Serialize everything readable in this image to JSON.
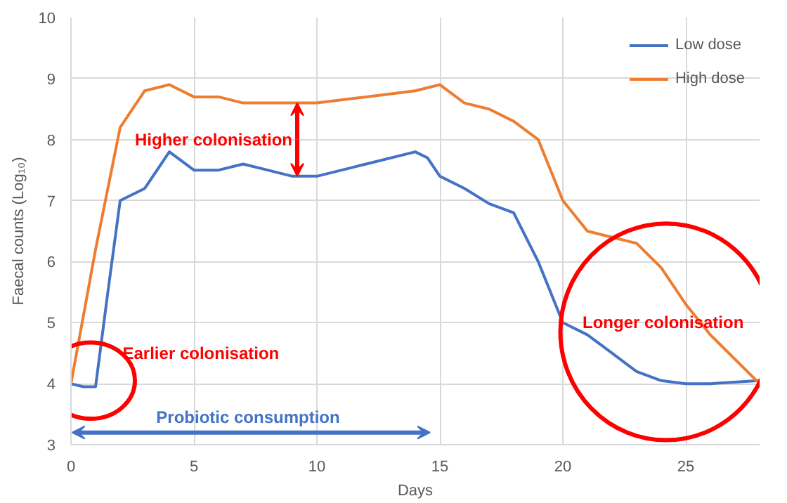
{
  "chart_data": {
    "type": "line",
    "xlabel": "Days",
    "ylabel": "Faecal counts (Log₁₀)",
    "xlim": [
      0,
      28
    ],
    "ylim": [
      3,
      10
    ],
    "xticks": [
      0,
      5,
      10,
      15,
      20,
      25
    ],
    "yticks": [
      3,
      4,
      5,
      6,
      7,
      8,
      9,
      10
    ],
    "grid": true,
    "legend": "top right",
    "line_style": "solid",
    "marker": "none",
    "series": [
      {
        "name": "Low dose",
        "color": "#4472c4",
        "x": [
          0,
          0.5,
          1,
          1.5,
          2,
          3,
          4,
          5,
          6,
          7,
          8,
          9,
          10,
          12,
          14,
          14.5,
          15,
          16,
          17,
          18,
          19,
          20,
          21,
          22,
          23,
          24,
          25,
          26,
          28
        ],
        "values": [
          4.0,
          3.95,
          3.95,
          5.5,
          7.0,
          7.2,
          7.8,
          7.5,
          7.5,
          7.6,
          7.5,
          7.4,
          7.4,
          7.6,
          7.8,
          7.7,
          7.4,
          7.2,
          6.95,
          6.8,
          6.0,
          5.0,
          4.8,
          4.5,
          4.2,
          4.05,
          4.0,
          4.0,
          4.05
        ]
      },
      {
        "name": "High dose",
        "color": "#ed7d31",
        "x": [
          0,
          1,
          2,
          3,
          4,
          5,
          6,
          7,
          8,
          10,
          12,
          14,
          15,
          16,
          17,
          18,
          19,
          20,
          21,
          22,
          23,
          24,
          25,
          26,
          28
        ],
        "values": [
          4.0,
          6.2,
          8.2,
          8.8,
          8.9,
          8.7,
          8.7,
          8.6,
          8.6,
          8.6,
          8.7,
          8.8,
          8.9,
          8.6,
          8.5,
          8.3,
          8.0,
          7.0,
          6.5,
          6.4,
          6.3,
          5.9,
          5.3,
          4.8,
          4.0
        ]
      }
    ],
    "annotations": [
      "Earlier colonisation",
      {
        "text": "Higher colonisation",
        "x": 9.2,
        "y": 8.6
      },
      "Longer colonisation",
      "Probiotic consumption"
    ]
  }
}
